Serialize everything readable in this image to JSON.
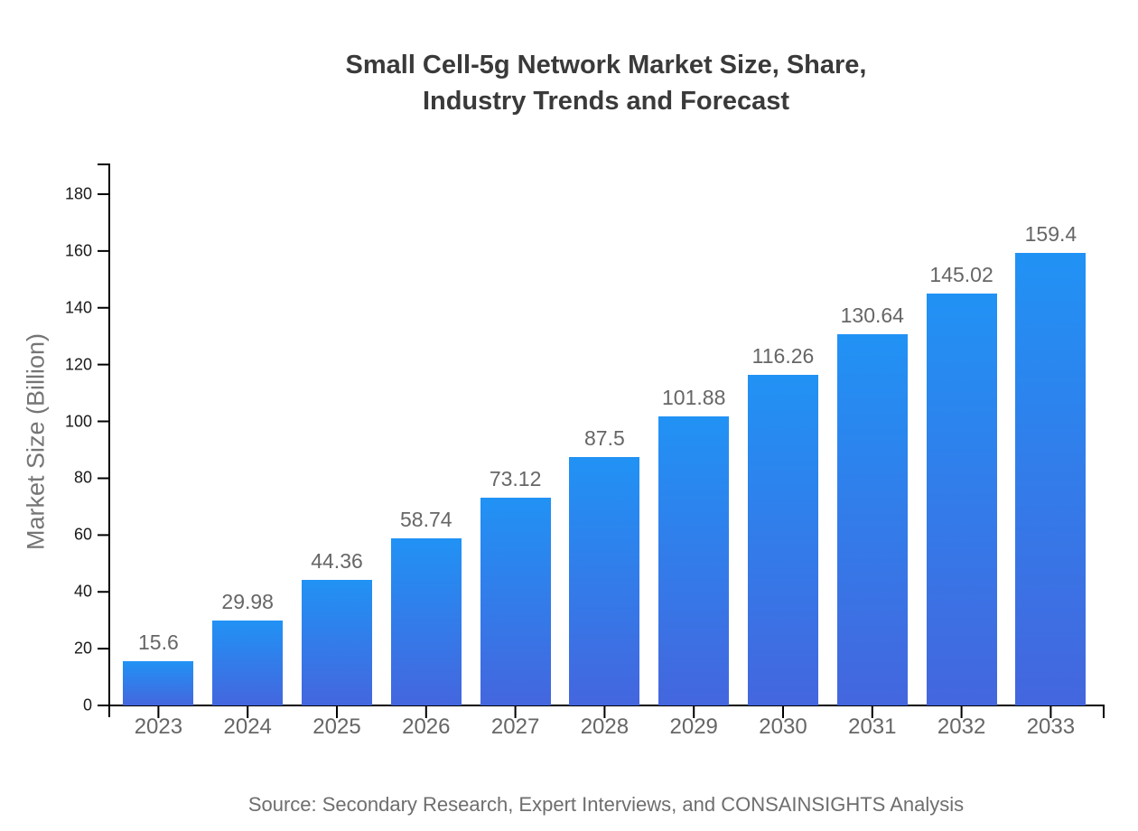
{
  "chart_data": {
    "type": "bar",
    "title": "Small Cell-5g Network Market Size, Share, Industry Trends and Forecast",
    "title_lines": [
      "Small Cell-5g Network Market Size, Share,",
      "Industry Trends and Forecast"
    ],
    "xlabel": "",
    "ylabel": "Market Size (Billion)",
    "categories": [
      "2023",
      "2024",
      "2025",
      "2026",
      "2027",
      "2028",
      "2029",
      "2030",
      "2031",
      "2032",
      "2033"
    ],
    "values": [
      15.6,
      29.98,
      44.36,
      58.74,
      73.12,
      87.5,
      101.88,
      116.26,
      130.64,
      145.02,
      159.4
    ],
    "value_labels": [
      "15.6",
      "29.98",
      "44.36",
      "58.74",
      "73.12",
      "87.5",
      "101.88",
      "116.26",
      "130.64",
      "145.02",
      "159.4"
    ],
    "yticks": [
      0,
      20,
      40,
      60,
      80,
      100,
      120,
      140,
      160,
      180
    ],
    "ylim": [
      0,
      190
    ],
    "grid": false,
    "legend_position": "none",
    "source": "Source: Secondary Research, Expert Interviews, and CONSAINSIGHTS Analysis",
    "colors": {
      "bar_gradient_top": "#2192f5",
      "bar_gradient_bottom": "#4466de",
      "axis_line": "#000000",
      "y_tick_label": "#1a1a1a",
      "x_tick_label": "#666666",
      "value_label": "#666666",
      "title": "#3a3a3a",
      "axis_title": "#757575",
      "source_text": "#6e6e6e",
      "background": "#ffffff"
    }
  }
}
